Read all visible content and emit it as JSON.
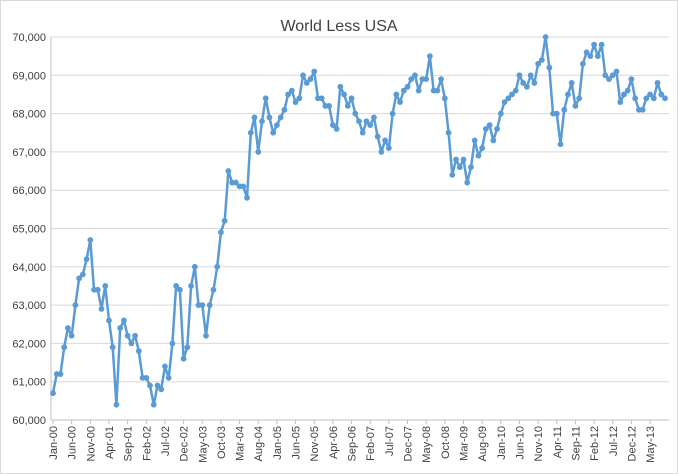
{
  "chart_data": {
    "type": "line",
    "title": "World Less USA",
    "xlabel": "",
    "ylabel": "",
    "ylim": [
      60000,
      70000
    ],
    "y_ticks": [
      "60,000",
      "61,000",
      "62,000",
      "63,000",
      "64,000",
      "65,000",
      "66,000",
      "67,000",
      "68,000",
      "69,000",
      "70,000"
    ],
    "x_ticks": [
      "Jan-00",
      "Jun-00",
      "Nov-00",
      "Apr-01",
      "Sep-01",
      "Feb-02",
      "Jul-02",
      "Dec-02",
      "May-03",
      "Oct-03",
      "Mar-04",
      "Aug-04",
      "Jan-05",
      "Jun-05",
      "Nov-05",
      "Apr-06",
      "Sep-06",
      "Feb-07",
      "Jul-07",
      "Dec-07",
      "May-08",
      "Oct-08",
      "Mar-09",
      "Aug-09",
      "Jan-10",
      "Jun-10",
      "Nov-10",
      "Apr-11",
      "Sep-11",
      "Feb-12",
      "Jul-12",
      "Dec-12",
      "May-13"
    ],
    "grid": true,
    "legend": "none",
    "series_color": "#5b9bd5",
    "series": [
      {
        "name": "World Less USA",
        "start": "Jan-00",
        "frequency": "monthly",
        "values": [
          60700,
          61200,
          61200,
          61900,
          62400,
          62200,
          63000,
          63700,
          63800,
          64200,
          64700,
          63400,
          63400,
          62900,
          63500,
          62600,
          61900,
          60400,
          62400,
          62600,
          62200,
          62000,
          62200,
          61800,
          61100,
          61100,
          60900,
          60400,
          60900,
          60800,
          61400,
          61100,
          62000,
          63500,
          63400,
          61600,
          61900,
          63500,
          64000,
          63000,
          63000,
          62200,
          63000,
          63400,
          64000,
          64900,
          65200,
          66500,
          66200,
          66200,
          66100,
          66100,
          65800,
          67500,
          67900,
          67000,
          67800,
          68400,
          67900,
          67500,
          67700,
          67900,
          68100,
          68500,
          68600,
          68300,
          68400,
          69000,
          68800,
          68900,
          69100,
          68400,
          68400,
          68200,
          68200,
          67700,
          67600,
          68700,
          68500,
          68200,
          68400,
          68000,
          67800,
          67500,
          67800,
          67700,
          67900,
          67400,
          67000,
          67300,
          67100,
          68000,
          68500,
          68300,
          68600,
          68700,
          68900,
          69000,
          68600,
          68900,
          68900,
          69500,
          68600,
          68600,
          68900,
          68400,
          67500,
          66400,
          66800,
          66600,
          66800,
          66200,
          66600,
          67300,
          66900,
          67100,
          67600,
          67700,
          67300,
          67600,
          68000,
          68300,
          68400,
          68500,
          68600,
          69000,
          68800,
          68700,
          69000,
          68800,
          69300,
          69400,
          70000,
          69200,
          68000,
          68000,
          67200,
          68100,
          68500,
          68800,
          68200,
          68400,
          69300,
          69600,
          69500,
          69800,
          69500,
          69800,
          69000,
          68900,
          69000,
          69100,
          68300,
          68500,
          68600,
          68900,
          68400,
          68100,
          68100,
          68400,
          68500,
          68400,
          68800,
          68500,
          68400
        ]
      }
    ]
  }
}
